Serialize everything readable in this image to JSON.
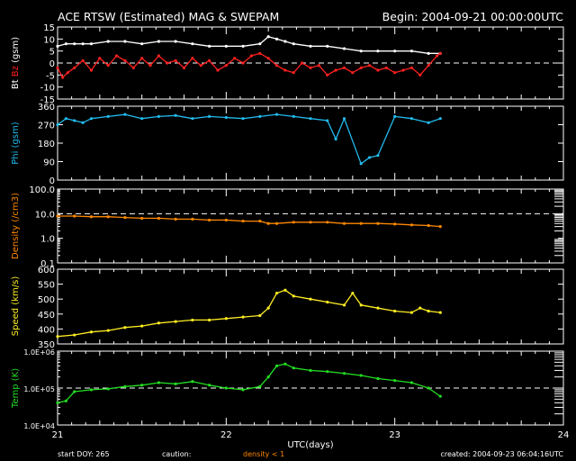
{
  "header": {
    "title": "ACE RTSW (Estimated) MAG & SWEPAM",
    "begin": "Begin: 2004-09-21 00:00:00UTC"
  },
  "footer": {
    "start_doy": "start DOY: 265",
    "caution": "caution:",
    "density_note": "density < 1",
    "created": "created: 2004-09-23 06:04:16UTC"
  },
  "colors": {
    "bt": "#ffffff",
    "bz": "#ff2020",
    "phi": "#22bbee",
    "density": "#ff8800",
    "speed": "#ffee22",
    "temp": "#22dd22",
    "frame": "#ffffff",
    "background": "#000000"
  },
  "chart_data": [
    {
      "type": "scatter",
      "ylabel_parts": [
        "Bt",
        "Bz",
        "(gsm)"
      ],
      "ylim": [
        -15,
        15
      ],
      "yticks": [
        "15",
        "10",
        "5",
        "0",
        "-5",
        "-10",
        "-15"
      ],
      "reference_line": 0,
      "series": [
        {
          "name": "Bt",
          "x": [
            21.0,
            21.05,
            21.1,
            21.15,
            21.2,
            21.3,
            21.4,
            21.5,
            21.6,
            21.7,
            21.8,
            21.9,
            22.0,
            22.1,
            22.2,
            22.25,
            22.3,
            22.35,
            22.4,
            22.5,
            22.6,
            22.7,
            22.8,
            22.9,
            23.0,
            23.1,
            23.2,
            23.27
          ],
          "y": [
            7,
            8,
            8,
            8,
            8,
            9,
            9,
            8,
            9,
            9,
            8,
            7,
            7,
            7,
            8,
            11,
            10,
            9,
            8,
            7,
            7,
            6,
            5,
            5,
            5,
            5,
            4,
            4
          ]
        },
        {
          "name": "Bz",
          "x": [
            21.0,
            21.03,
            21.06,
            21.1,
            21.15,
            21.2,
            21.25,
            21.3,
            21.35,
            21.4,
            21.45,
            21.5,
            21.55,
            21.6,
            21.65,
            21.7,
            21.75,
            21.8,
            21.85,
            21.9,
            21.95,
            22.0,
            22.05,
            22.1,
            22.15,
            22.2,
            22.25,
            22.3,
            22.35,
            22.4,
            22.45,
            22.5,
            22.55,
            22.6,
            22.65,
            22.7,
            22.75,
            22.8,
            22.85,
            22.9,
            22.95,
            23.0,
            23.05,
            23.1,
            23.15,
            23.2,
            23.25,
            23.27
          ],
          "y": [
            -2,
            -6,
            -4,
            -2,
            1,
            -3,
            2,
            -1,
            3,
            1,
            -2,
            2,
            -1,
            3,
            0,
            1,
            -2,
            2,
            -1,
            1,
            -3,
            -1,
            2,
            0,
            3,
            4,
            2,
            -1,
            -3,
            -4,
            0,
            -2,
            -1,
            -5,
            -3,
            -2,
            -4,
            -2,
            -1,
            -3,
            -2,
            -4,
            -3,
            -2,
            -5,
            -1,
            3,
            4
          ]
        }
      ]
    },
    {
      "type": "scatter",
      "ylabel": "Phi (gsm)",
      "ylim": [
        0,
        360
      ],
      "yticks": [
        "360",
        "270",
        "180",
        "90",
        "0"
      ],
      "series": [
        {
          "name": "Phi",
          "x": [
            21.0,
            21.05,
            21.1,
            21.15,
            21.2,
            21.3,
            21.4,
            21.5,
            21.6,
            21.7,
            21.8,
            21.9,
            22.0,
            22.1,
            22.2,
            22.3,
            22.4,
            22.5,
            22.6,
            22.65,
            22.7,
            22.8,
            22.85,
            22.9,
            23.0,
            23.1,
            23.2,
            23.27
          ],
          "y": [
            270,
            300,
            290,
            280,
            300,
            310,
            320,
            300,
            310,
            315,
            300,
            310,
            305,
            300,
            310,
            320,
            310,
            300,
            290,
            200,
            300,
            80,
            110,
            120,
            310,
            300,
            280,
            300
          ]
        }
      ]
    },
    {
      "type": "scatter",
      "ylabel": "Density (/cm3)",
      "yscale": "log",
      "ylim": [
        0.1,
        100
      ],
      "yticks": [
        "100.0",
        "10.0",
        "1.0",
        "0.1"
      ],
      "reference_line": 10,
      "series": [
        {
          "name": "Density",
          "x": [
            21.0,
            21.1,
            21.2,
            21.3,
            21.4,
            21.5,
            21.6,
            21.7,
            21.8,
            21.9,
            22.0,
            22.1,
            22.2,
            22.25,
            22.3,
            22.4,
            22.5,
            22.6,
            22.7,
            22.8,
            22.9,
            23.0,
            23.1,
            23.2,
            23.27
          ],
          "y": [
            8,
            8,
            7.5,
            7.5,
            7,
            6.5,
            6.5,
            6,
            6,
            5.5,
            5.5,
            5,
            5,
            4,
            4,
            4.5,
            4.5,
            4.5,
            4,
            4,
            4,
            3.8,
            3.5,
            3.3,
            3
          ]
        }
      ]
    },
    {
      "type": "scatter",
      "ylabel": "Speed (km/s)",
      "ylim": [
        350,
        600
      ],
      "yticks": [
        "600",
        "550",
        "500",
        "450",
        "400",
        "350"
      ],
      "series": [
        {
          "name": "Speed",
          "x": [
            21.0,
            21.1,
            21.2,
            21.3,
            21.4,
            21.5,
            21.6,
            21.7,
            21.8,
            21.9,
            22.0,
            22.1,
            22.2,
            22.25,
            22.3,
            22.35,
            22.4,
            22.5,
            22.6,
            22.7,
            22.75,
            22.8,
            22.9,
            23.0,
            23.1,
            23.15,
            23.2,
            23.27
          ],
          "y": [
            375,
            380,
            390,
            395,
            405,
            410,
            420,
            425,
            430,
            430,
            435,
            440,
            445,
            470,
            520,
            530,
            510,
            500,
            490,
            480,
            520,
            480,
            470,
            460,
            455,
            470,
            460,
            455
          ]
        }
      ]
    },
    {
      "type": "scatter",
      "ylabel": "Temp (K)",
      "yscale": "log",
      "ylim": [
        10000,
        1000000
      ],
      "yticks": [
        "1.0E+06",
        "1.0E+05",
        "1.0E+04"
      ],
      "reference_line": 100000,
      "xlabel": "UTC(days)",
      "xlim": [
        21,
        24
      ],
      "xticks": [
        "21",
        "22",
        "23",
        "24"
      ],
      "series": [
        {
          "name": "Temp",
          "x": [
            21.0,
            21.05,
            21.1,
            21.2,
            21.3,
            21.4,
            21.5,
            21.6,
            21.7,
            21.8,
            21.9,
            22.0,
            22.1,
            22.2,
            22.25,
            22.3,
            22.35,
            22.4,
            22.5,
            22.6,
            22.7,
            22.8,
            22.9,
            23.0,
            23.1,
            23.2,
            23.27
          ],
          "y": [
            40000,
            45000,
            80000,
            90000,
            95000,
            110000,
            120000,
            140000,
            130000,
            150000,
            120000,
            100000,
            90000,
            110000,
            200000,
            400000,
            450000,
            350000,
            300000,
            280000,
            250000,
            220000,
            180000,
            160000,
            140000,
            100000,
            60000
          ]
        }
      ]
    }
  ]
}
